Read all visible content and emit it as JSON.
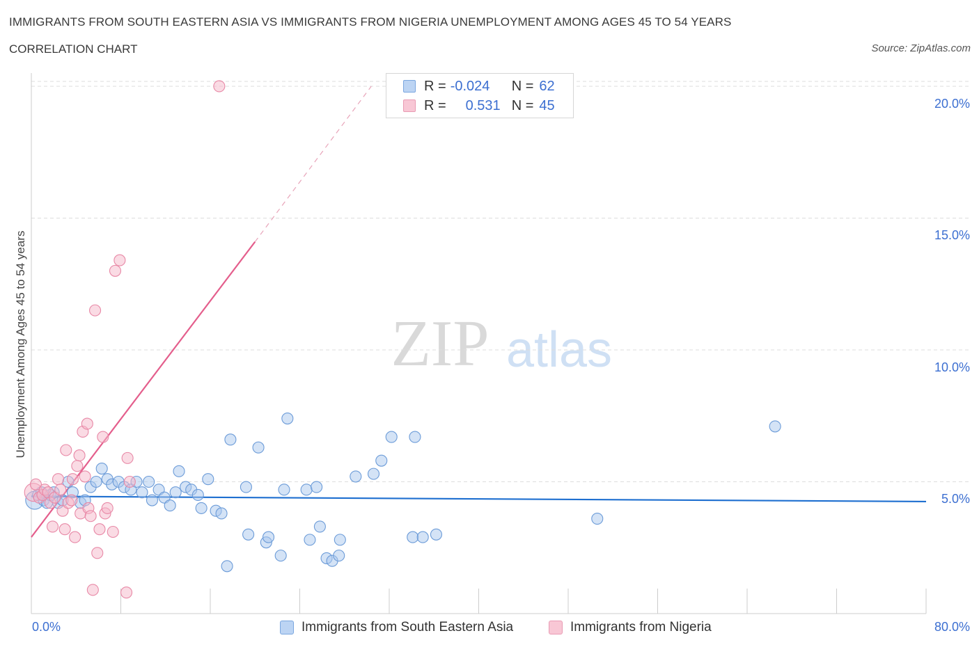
{
  "header": {
    "title": "IMMIGRANTS FROM SOUTH EASTERN ASIA VS IMMIGRANTS FROM NIGERIA UNEMPLOYMENT AMONG AGES 45 TO 54 YEARS",
    "subtitle": "CORRELATION CHART",
    "source": "Source: ZipAtlas.com"
  },
  "watermark": {
    "zip": "ZIP",
    "atlas": "atlas"
  },
  "legend": {
    "row1": {
      "r_label": "R =",
      "r_value": "-0.024",
      "n_label": "N =",
      "n_value": "62"
    },
    "row2": {
      "r_label": "R =",
      "r_value": "0.531",
      "n_label": "N =",
      "n_value": "45"
    }
  },
  "colors": {
    "blue_fill": "#a9c8ee",
    "blue_stroke": "#6b9bd8",
    "blue_line": "#1e6fd0",
    "pink_fill": "#f5b8c9",
    "pink_stroke": "#e888a6",
    "pink_line": "#e45e8c",
    "accent_text": "#3c6fd1",
    "grid": "#dddddd"
  },
  "chart_data": {
    "type": "scatter",
    "title": "IMMIGRANTS FROM SOUTH EASTERN ASIA VS IMMIGRANTS FROM NIGERIA UNEMPLOYMENT AMONG AGES 45 TO 54 YEARS",
    "xlabel": "",
    "ylabel": "Unemployment Among Ages 45 to 54 years",
    "xlim": [
      0,
      80
    ],
    "ylim": [
      0,
      20.5
    ],
    "x_tick_labels": [
      "0.0%",
      "80.0%"
    ],
    "y_ticks": [
      5,
      10,
      15,
      20
    ],
    "y_tick_labels": [
      "5.0%",
      "10.0%",
      "15.0%",
      "20.0%"
    ],
    "legend_position": "top-center",
    "series": [
      {
        "name": "Immigrants from South Eastern Asia",
        "color": "blue",
        "r": -0.024,
        "n": 62,
        "trend": {
          "x0": 0,
          "y0": 4.45,
          "x1": 80,
          "y1": 4.25
        },
        "points": [
          {
            "x": 0.3,
            "y": 4.3,
            "big": true
          },
          {
            "x": 0.6,
            "y": 4.5
          },
          {
            "x": 0.9,
            "y": 4.6
          },
          {
            "x": 1.1,
            "y": 4.3
          },
          {
            "x": 1.4,
            "y": 4.2
          },
          {
            "x": 1.7,
            "y": 4.5
          },
          {
            "x": 2.0,
            "y": 4.6
          },
          {
            "x": 2.4,
            "y": 4.2
          },
          {
            "x": 2.8,
            "y": 4.3
          },
          {
            "x": 3.3,
            "y": 5.0
          },
          {
            "x": 3.7,
            "y": 4.6
          },
          {
            "x": 4.4,
            "y": 4.2
          },
          {
            "x": 4.8,
            "y": 4.3
          },
          {
            "x": 5.3,
            "y": 4.8
          },
          {
            "x": 5.8,
            "y": 5.0
          },
          {
            "x": 6.3,
            "y": 5.5
          },
          {
            "x": 6.8,
            "y": 5.1
          },
          {
            "x": 7.2,
            "y": 4.9
          },
          {
            "x": 7.8,
            "y": 5.0
          },
          {
            "x": 8.3,
            "y": 4.8
          },
          {
            "x": 8.9,
            "y": 4.7
          },
          {
            "x": 9.4,
            "y": 5.0
          },
          {
            "x": 9.9,
            "y": 4.6
          },
          {
            "x": 10.5,
            "y": 5.0
          },
          {
            "x": 10.8,
            "y": 4.3
          },
          {
            "x": 11.4,
            "y": 4.7
          },
          {
            "x": 11.9,
            "y": 4.4
          },
          {
            "x": 12.4,
            "y": 4.1
          },
          {
            "x": 12.9,
            "y": 4.6
          },
          {
            "x": 13.2,
            "y": 5.4
          },
          {
            "x": 13.8,
            "y": 4.8
          },
          {
            "x": 14.3,
            "y": 4.7
          },
          {
            "x": 14.9,
            "y": 4.5
          },
          {
            "x": 15.2,
            "y": 4.0
          },
          {
            "x": 15.8,
            "y": 5.1
          },
          {
            "x": 16.5,
            "y": 3.9
          },
          {
            "x": 17.0,
            "y": 3.8
          },
          {
            "x": 17.5,
            "y": 1.8
          },
          {
            "x": 17.8,
            "y": 6.6
          },
          {
            "x": 19.2,
            "y": 4.8
          },
          {
            "x": 19.4,
            "y": 3.0
          },
          {
            "x": 20.3,
            "y": 6.3
          },
          {
            "x": 21.0,
            "y": 2.7
          },
          {
            "x": 21.2,
            "y": 2.9
          },
          {
            "x": 22.3,
            "y": 2.2
          },
          {
            "x": 22.6,
            "y": 4.7
          },
          {
            "x": 22.9,
            "y": 7.4
          },
          {
            "x": 24.6,
            "y": 4.7
          },
          {
            "x": 24.9,
            "y": 2.8
          },
          {
            "x": 25.5,
            "y": 4.8
          },
          {
            "x": 25.8,
            "y": 3.3
          },
          {
            "x": 26.4,
            "y": 2.1
          },
          {
            "x": 26.9,
            "y": 2.0
          },
          {
            "x": 27.5,
            "y": 2.2
          },
          {
            "x": 27.6,
            "y": 2.8
          },
          {
            "x": 29.0,
            "y": 5.2
          },
          {
            "x": 30.6,
            "y": 5.3
          },
          {
            "x": 31.3,
            "y": 5.8
          },
          {
            "x": 32.2,
            "y": 6.7
          },
          {
            "x": 34.1,
            "y": 2.9
          },
          {
            "x": 34.3,
            "y": 6.7
          },
          {
            "x": 35.0,
            "y": 2.9
          },
          {
            "x": 36.2,
            "y": 3.0
          },
          {
            "x": 50.6,
            "y": 3.6
          },
          {
            "x": 66.5,
            "y": 7.1
          }
        ]
      },
      {
        "name": "Immigrants from Nigeria",
        "color": "pink",
        "r": 0.531,
        "n": 45,
        "trend": {
          "x0": 0,
          "y0": 2.9,
          "x1": 20,
          "y1": 14.1
        },
        "trend_dashed": {
          "x0": 20,
          "y0": 14.1,
          "x1": 30.4,
          "y1": 20.0
        },
        "points": [
          {
            "x": 0.2,
            "y": 4.6,
            "big": true
          },
          {
            "x": 0.4,
            "y": 4.9
          },
          {
            "x": 0.7,
            "y": 4.4
          },
          {
            "x": 1.0,
            "y": 4.5
          },
          {
            "x": 1.2,
            "y": 4.7
          },
          {
            "x": 1.5,
            "y": 4.6
          },
          {
            "x": 1.7,
            "y": 4.2
          },
          {
            "x": 1.9,
            "y": 3.3
          },
          {
            "x": 2.1,
            "y": 4.4
          },
          {
            "x": 2.4,
            "y": 5.1
          },
          {
            "x": 2.6,
            "y": 4.7
          },
          {
            "x": 2.8,
            "y": 3.9
          },
          {
            "x": 3.0,
            "y": 3.2
          },
          {
            "x": 3.1,
            "y": 6.2
          },
          {
            "x": 3.3,
            "y": 4.2
          },
          {
            "x": 3.6,
            "y": 4.3
          },
          {
            "x": 3.7,
            "y": 5.1
          },
          {
            "x": 3.9,
            "y": 2.9
          },
          {
            "x": 4.1,
            "y": 5.6
          },
          {
            "x": 4.3,
            "y": 6.0
          },
          {
            "x": 4.4,
            "y": 3.8
          },
          {
            "x": 4.6,
            "y": 6.9
          },
          {
            "x": 4.8,
            "y": 5.2
          },
          {
            "x": 5.0,
            "y": 7.2
          },
          {
            "x": 5.1,
            "y": 4.0
          },
          {
            "x": 5.3,
            "y": 3.7
          },
          {
            "x": 5.5,
            "y": 0.9
          },
          {
            "x": 5.7,
            "y": 11.5
          },
          {
            "x": 5.9,
            "y": 2.3
          },
          {
            "x": 6.1,
            "y": 3.2
          },
          {
            "x": 6.4,
            "y": 6.7
          },
          {
            "x": 6.6,
            "y": 3.8
          },
          {
            "x": 6.8,
            "y": 4.0
          },
          {
            "x": 7.3,
            "y": 3.1
          },
          {
            "x": 7.5,
            "y": 13.0
          },
          {
            "x": 7.9,
            "y": 13.4
          },
          {
            "x": 8.5,
            "y": 0.8
          },
          {
            "x": 8.6,
            "y": 5.9
          },
          {
            "x": 8.8,
            "y": 5.0
          },
          {
            "x": 16.8,
            "y": 20.0
          }
        ]
      }
    ]
  },
  "bottom_legend": {
    "item1": "Immigrants from South Eastern Asia",
    "item2": "Immigrants from Nigeria"
  }
}
